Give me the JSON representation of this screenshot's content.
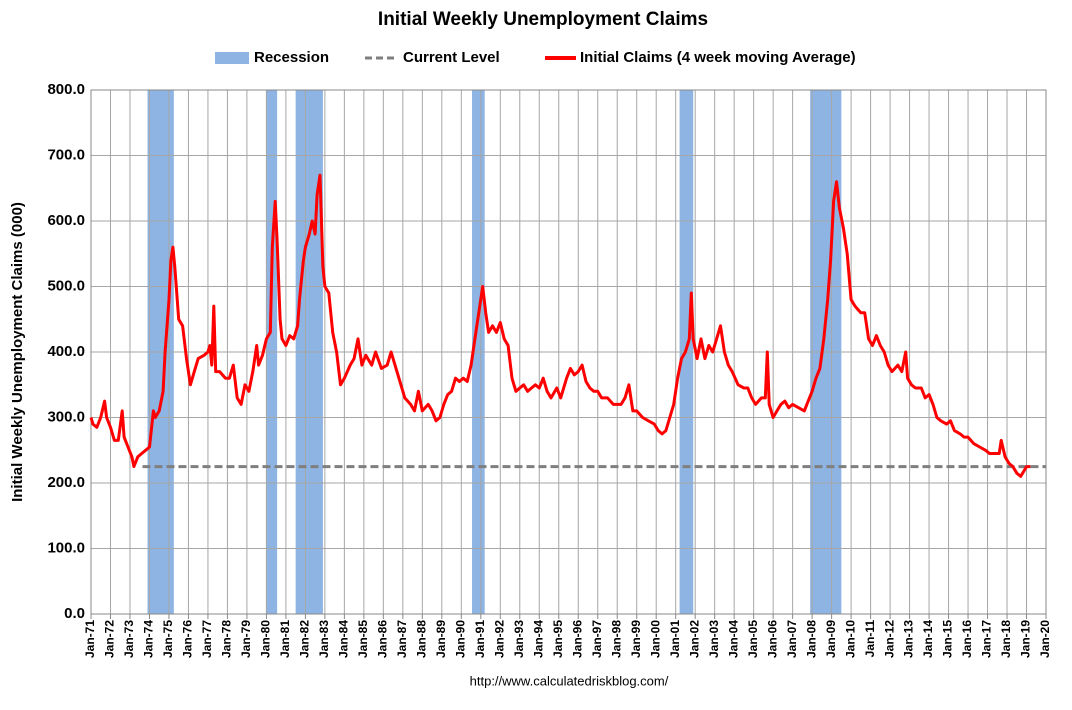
{
  "chart_data": {
    "type": "line",
    "title": "Initial Weekly Unemployment Claims",
    "ylabel": "Initial Weekly Unemployment Claims (000)",
    "source": "http://www.calculatedriskblog.com/",
    "grid": true,
    "xlim": [
      1971,
      2020
    ],
    "ylim": [
      0,
      800
    ],
    "yticks": [
      {
        "value": 0,
        "label": "0.0"
      },
      {
        "value": 100,
        "label": "100.0"
      },
      {
        "value": 200,
        "label": "200.0"
      },
      {
        "value": 300,
        "label": "300.0"
      },
      {
        "value": 400,
        "label": "400.0"
      },
      {
        "value": 500,
        "label": "500.0"
      },
      {
        "value": 600,
        "label": "600.0"
      },
      {
        "value": 700,
        "label": "700.0"
      },
      {
        "value": 800,
        "label": "800.0"
      }
    ],
    "xticks": [
      {
        "value": 1971,
        "label": "Jan-71"
      },
      {
        "value": 1972,
        "label": "Jan-72"
      },
      {
        "value": 1973,
        "label": "Jan-73"
      },
      {
        "value": 1974,
        "label": "Jan-74"
      },
      {
        "value": 1975,
        "label": "Jan-75"
      },
      {
        "value": 1976,
        "label": "Jan-76"
      },
      {
        "value": 1977,
        "label": "Jan-77"
      },
      {
        "value": 1978,
        "label": "Jan-78"
      },
      {
        "value": 1979,
        "label": "Jan-79"
      },
      {
        "value": 1980,
        "label": "Jan-80"
      },
      {
        "value": 1981,
        "label": "Jan-81"
      },
      {
        "value": 1982,
        "label": "Jan-82"
      },
      {
        "value": 1983,
        "label": "Jan-83"
      },
      {
        "value": 1984,
        "label": "Jan-84"
      },
      {
        "value": 1985,
        "label": "Jan-85"
      },
      {
        "value": 1986,
        "label": "Jan-86"
      },
      {
        "value": 1987,
        "label": "Jan-87"
      },
      {
        "value": 1988,
        "label": "Jan-88"
      },
      {
        "value": 1989,
        "label": "Jan-89"
      },
      {
        "value": 1990,
        "label": "Jan-90"
      },
      {
        "value": 1991,
        "label": "Jan-91"
      },
      {
        "value": 1992,
        "label": "Jan-92"
      },
      {
        "value": 1993,
        "label": "Jan-93"
      },
      {
        "value": 1994,
        "label": "Jan-94"
      },
      {
        "value": 1995,
        "label": "Jan-95"
      },
      {
        "value": 1996,
        "label": "Jan-96"
      },
      {
        "value": 1997,
        "label": "Jan-97"
      },
      {
        "value": 1998,
        "label": "Jan-98"
      },
      {
        "value": 1999,
        "label": "Jan-99"
      },
      {
        "value": 2000,
        "label": "Jan-00"
      },
      {
        "value": 2001,
        "label": "Jan-01"
      },
      {
        "value": 2002,
        "label": "Jan-02"
      },
      {
        "value": 2003,
        "label": "Jan-03"
      },
      {
        "value": 2004,
        "label": "Jan-04"
      },
      {
        "value": 2005,
        "label": "Jan-05"
      },
      {
        "value": 2006,
        "label": "Jan-06"
      },
      {
        "value": 2007,
        "label": "Jan-07"
      },
      {
        "value": 2008,
        "label": "Jan-08"
      },
      {
        "value": 2009,
        "label": "Jan-09"
      },
      {
        "value": 2010,
        "label": "Jan-10"
      },
      {
        "value": 2011,
        "label": "Jan-11"
      },
      {
        "value": 2012,
        "label": "Jan-12"
      },
      {
        "value": 2013,
        "label": "Jan-13"
      },
      {
        "value": 2014,
        "label": "Jan-14"
      },
      {
        "value": 2015,
        "label": "Jan-15"
      },
      {
        "value": 2016,
        "label": "Jan-16"
      },
      {
        "value": 2017,
        "label": "Jan-17"
      },
      {
        "value": 2018,
        "label": "Jan-18"
      },
      {
        "value": 2019,
        "label": "Jan-19"
      },
      {
        "value": 2020,
        "label": "Jan-20"
      }
    ],
    "recessions": {
      "name": "Recession",
      "color": "#8eb4e3",
      "ranges": [
        [
          1973.9,
          1975.25
        ],
        [
          1980.0,
          1980.55
        ],
        [
          1981.5,
          1982.9
        ],
        [
          1990.55,
          1991.2
        ],
        [
          2001.2,
          2001.9
        ],
        [
          2007.9,
          2009.5
        ]
      ]
    },
    "reference_line": {
      "name": "Current Level",
      "value": 225,
      "color": "#7f7f7f"
    },
    "series": [
      {
        "name": "Initial Claims (4 week moving Average)",
        "color": "#ff0000",
        "x": [
          1971.0,
          1971.1,
          1971.3,
          1971.5,
          1971.7,
          1971.8,
          1972.0,
          1972.2,
          1972.4,
          1972.6,
          1972.7,
          1972.9,
          1973.1,
          1973.2,
          1973.4,
          1973.6,
          1973.8,
          1974.0,
          1974.2,
          1974.3,
          1974.5,
          1974.7,
          1974.8,
          1975.0,
          1975.1,
          1975.2,
          1975.3,
          1975.5,
          1975.7,
          1975.9,
          1976.1,
          1976.3,
          1976.5,
          1976.8,
          1977.0,
          1977.1,
          1977.2,
          1977.3,
          1977.4,
          1977.6,
          1977.9,
          1978.1,
          1978.3,
          1978.5,
          1978.7,
          1978.9,
          1979.1,
          1979.3,
          1979.5,
          1979.6,
          1979.8,
          1980.0,
          1980.2,
          1980.3,
          1980.45,
          1980.55,
          1980.7,
          1980.8,
          1981.0,
          1981.2,
          1981.4,
          1981.6,
          1981.7,
          1981.9,
          1982.0,
          1982.2,
          1982.35,
          1982.5,
          1982.6,
          1982.75,
          1982.9,
          1983.0,
          1983.2,
          1983.4,
          1983.6,
          1983.8,
          1984.0,
          1984.3,
          1984.5,
          1984.7,
          1984.9,
          1985.1,
          1985.4,
          1985.6,
          1985.9,
          1986.2,
          1986.4,
          1986.6,
          1986.9,
          1987.1,
          1987.4,
          1987.6,
          1987.8,
          1988.0,
          1988.3,
          1988.5,
          1988.7,
          1988.9,
          1989.1,
          1989.3,
          1989.5,
          1989.7,
          1989.9,
          1990.1,
          1990.3,
          1990.5,
          1990.7,
          1990.9,
          1991.1,
          1991.25,
          1991.4,
          1991.6,
          1991.8,
          1992.0,
          1992.2,
          1992.4,
          1992.6,
          1992.8,
          1993.0,
          1993.2,
          1993.4,
          1993.6,
          1993.8,
          1994.0,
          1994.2,
          1994.4,
          1994.6,
          1994.9,
          1995.1,
          1995.4,
          1995.6,
          1995.8,
          1996.0,
          1996.2,
          1996.4,
          1996.6,
          1996.8,
          1997.0,
          1997.2,
          1997.5,
          1997.8,
          1998.0,
          1998.2,
          1998.4,
          1998.6,
          1998.8,
          1999.0,
          1999.3,
          1999.6,
          1999.9,
          2000.1,
          2000.3,
          2000.5,
          2000.7,
          2000.9,
          2001.1,
          2001.3,
          2001.5,
          2001.7,
          2001.8,
          2001.9,
          2002.1,
          2002.3,
          2002.5,
          2002.7,
          2002.9,
          2003.1,
          2003.3,
          2003.5,
          2003.7,
          2003.9,
          2004.2,
          2004.5,
          2004.7,
          2004.9,
          2005.1,
          2005.4,
          2005.6,
          2005.7,
          2005.8,
          2006.0,
          2006.2,
          2006.4,
          2006.6,
          2006.8,
          2007.0,
          2007.3,
          2007.6,
          2007.8,
          2008.0,
          2008.2,
          2008.4,
          2008.6,
          2008.8,
          2008.95,
          2009.1,
          2009.25,
          2009.4,
          2009.6,
          2009.8,
          2010.0,
          2010.2,
          2010.5,
          2010.7,
          2010.9,
          2011.1,
          2011.3,
          2011.5,
          2011.7,
          2011.9,
          2012.1,
          2012.4,
          2012.6,
          2012.8,
          2012.9,
          2013.1,
          2013.3,
          2013.6,
          2013.8,
          2014.0,
          2014.2,
          2014.4,
          2014.6,
          2014.9,
          2015.1,
          2015.3,
          2015.6,
          2015.8,
          2016.0,
          2016.3,
          2016.6,
          2016.9,
          2017.1,
          2017.4,
          2017.6,
          2017.7,
          2017.9,
          2018.1,
          2018.3,
          2018.5,
          2018.7,
          2018.9,
          2019.0,
          2019.1,
          2019.2
        ],
        "values": [
          300,
          290,
          285,
          300,
          325,
          300,
          285,
          265,
          265,
          310,
          270,
          255,
          240,
          225,
          240,
          245,
          250,
          255,
          310,
          300,
          310,
          340,
          400,
          480,
          540,
          560,
          530,
          450,
          440,
          390,
          350,
          370,
          390,
          395,
          400,
          410,
          380,
          470,
          370,
          370,
          360,
          360,
          380,
          330,
          320,
          350,
          340,
          370,
          410,
          380,
          395,
          420,
          430,
          560,
          630,
          570,
          450,
          420,
          410,
          425,
          420,
          440,
          480,
          540,
          560,
          580,
          600,
          580,
          640,
          670,
          530,
          500,
          490,
          430,
          400,
          350,
          360,
          380,
          390,
          420,
          380,
          395,
          380,
          400,
          375,
          380,
          400,
          380,
          350,
          330,
          320,
          310,
          340,
          310,
          320,
          310,
          295,
          300,
          320,
          335,
          340,
          360,
          355,
          360,
          355,
          380,
          420,
          460,
          500,
          460,
          430,
          440,
          430,
          445,
          420,
          410,
          360,
          340,
          345,
          350,
          340,
          345,
          350,
          345,
          360,
          340,
          330,
          345,
          330,
          360,
          375,
          365,
          370,
          380,
          355,
          345,
          340,
          340,
          330,
          330,
          320,
          320,
          320,
          330,
          350,
          310,
          310,
          300,
          295,
          290,
          280,
          275,
          280,
          300,
          320,
          360,
          390,
          400,
          420,
          490,
          420,
          390,
          420,
          390,
          410,
          400,
          420,
          440,
          400,
          380,
          370,
          350,
          345,
          345,
          330,
          320,
          330,
          330,
          400,
          320,
          300,
          310,
          320,
          325,
          315,
          320,
          315,
          310,
          325,
          340,
          360,
          375,
          420,
          480,
          540,
          630,
          660,
          620,
          590,
          550,
          480,
          470,
          460,
          460,
          420,
          410,
          425,
          410,
          400,
          380,
          370,
          380,
          370,
          400,
          360,
          350,
          345,
          345,
          330,
          335,
          320,
          300,
          295,
          290,
          295,
          280,
          275,
          270,
          270,
          260,
          255,
          250,
          245,
          245,
          245,
          265,
          240,
          230,
          225,
          215,
          210,
          220,
          225,
          225,
          225
        ]
      }
    ]
  }
}
